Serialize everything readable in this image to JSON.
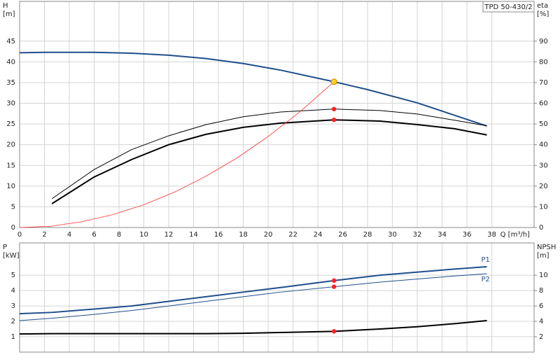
{
  "chart_data": [
    {
      "type": "line",
      "title": "TPD 50-430/2",
      "ylabel": "H",
      "yunit": "[m]",
      "y2label": "eta",
      "y2unit": "[%]",
      "xlabel": "Q [m³/h]",
      "xlim": [
        0,
        41.4
      ],
      "xticks": [
        0,
        2,
        4,
        6,
        8,
        10,
        12,
        14,
        16,
        18,
        20,
        22,
        24,
        26,
        28,
        30,
        32,
        34,
        36,
        38
      ],
      "xtick_labels": true,
      "ylim": [
        0,
        54.6
      ],
      "yticks": [
        0,
        5,
        10,
        15,
        20,
        25,
        30,
        35,
        40,
        45
      ],
      "y2lim": [
        0,
        109.2
      ],
      "y2ticks": [
        0,
        10,
        20,
        30,
        40,
        50,
        60,
        70,
        80,
        90
      ],
      "grid": true,
      "series": [
        {
          "color": "#1f4e8c",
          "line_width": 2,
          "axis": "y",
          "x": [
            0,
            2,
            6,
            9,
            12,
            15,
            18,
            21,
            25.3,
            28,
            32,
            35,
            37.6
          ],
          "values": [
            42.2,
            42.3,
            42.3,
            42.1,
            41.6,
            40.8,
            39.6,
            38.0,
            35.2,
            33.3,
            30.1,
            27.1,
            24.5
          ]
        },
        {
          "color": "#000000",
          "line_width": 2,
          "axis": "y2",
          "x": [
            2.6,
            6,
            9,
            12,
            15,
            18,
            21,
            25.3,
            29,
            32,
            35,
            37.6
          ],
          "values": [
            11.5,
            24.4,
            32.8,
            40.0,
            45.0,
            48.4,
            50.4,
            52.0,
            51.4,
            49.7,
            47.7,
            44.7
          ]
        },
        {
          "color": "#000000",
          "line_width": 1,
          "axis": "y2",
          "x": [
            2.6,
            6,
            9,
            12,
            15,
            18,
            21,
            25.3,
            29,
            32,
            35,
            37.6
          ],
          "values": [
            13.9,
            28.0,
            37.6,
            44.3,
            49.7,
            53.5,
            55.8,
            57.2,
            56.5,
            54.8,
            51.8,
            49.1
          ]
        },
        {
          "color": "#ff3030",
          "line_width": 0.8,
          "axis": "y",
          "x": [
            0,
            2.5,
            5,
            7.5,
            10,
            12.5,
            15,
            17.5,
            20,
            22.5,
            25.3
          ],
          "values": [
            0,
            0.3,
            1.4,
            3.1,
            5.5,
            8.6,
            12.4,
            16.8,
            22.0,
            27.8,
            35.2
          ]
        }
      ],
      "markers": [
        {
          "x": 25.3,
          "y": 35.2,
          "axis": "y",
          "color": "#ffd21f"
        },
        {
          "x": 25.3,
          "y": 57.2,
          "axis": "y2",
          "color": "#ff2020"
        },
        {
          "x": 25.3,
          "y": 52.0,
          "axis": "y2",
          "color": "#ff2020"
        }
      ]
    },
    {
      "type": "line",
      "ylabel": "P",
      "yunit": "[kW]",
      "y2label": "NPSH",
      "y2unit": "[m]",
      "xlim": [
        0,
        41.4
      ],
      "xticks": [
        0,
        2,
        4,
        6,
        8,
        10,
        12,
        14,
        16,
        18,
        20,
        22,
        24,
        26,
        28,
        30,
        32,
        34,
        36,
        38
      ],
      "xtick_labels": false,
      "ylim": [
        0,
        7.1
      ],
      "yticks": [
        1,
        2,
        3,
        4,
        5
      ],
      "y2lim": [
        0,
        14.2
      ],
      "y2ticks": [
        2,
        4,
        6,
        8,
        10
      ],
      "grid": true,
      "series": [
        {
          "name": "P1",
          "color": "#1f4e8c",
          "line_width": 2,
          "axis": "y",
          "x": [
            0,
            2.6,
            6,
            9,
            12,
            15,
            18,
            21,
            25.3,
            29,
            32,
            35,
            37.6
          ],
          "values": [
            2.5,
            2.58,
            2.8,
            3.0,
            3.3,
            3.6,
            3.9,
            4.2,
            4.65,
            5.0,
            5.2,
            5.4,
            5.55
          ]
        },
        {
          "name": "P2",
          "color": "#1f4e8c",
          "line_width": 1,
          "axis": "y",
          "x": [
            0,
            2.6,
            6,
            9,
            12,
            15,
            18,
            21,
            25.3,
            29,
            32,
            35,
            37.6
          ],
          "values": [
            2.05,
            2.2,
            2.45,
            2.7,
            3.0,
            3.3,
            3.6,
            3.9,
            4.25,
            4.55,
            4.75,
            4.95,
            5.1
          ]
        },
        {
          "color": "#000000",
          "line_width": 2,
          "axis": "y2",
          "x": [
            0,
            2.6,
            6,
            9,
            12,
            15,
            18,
            21,
            25.3,
            29,
            32,
            35,
            37.6
          ],
          "values": [
            2.35,
            2.4,
            2.4,
            2.4,
            2.4,
            2.4,
            2.45,
            2.55,
            2.7,
            3.0,
            3.3,
            3.7,
            4.1
          ]
        }
      ],
      "markers": [
        {
          "x": 25.3,
          "y": 4.65,
          "axis": "y",
          "color": "#ff2020"
        },
        {
          "x": 25.3,
          "y": 4.25,
          "axis": "y",
          "color": "#ff2020"
        },
        {
          "x": 25.3,
          "y": 2.7,
          "axis": "y2",
          "color": "#ff2020"
        }
      ]
    }
  ]
}
